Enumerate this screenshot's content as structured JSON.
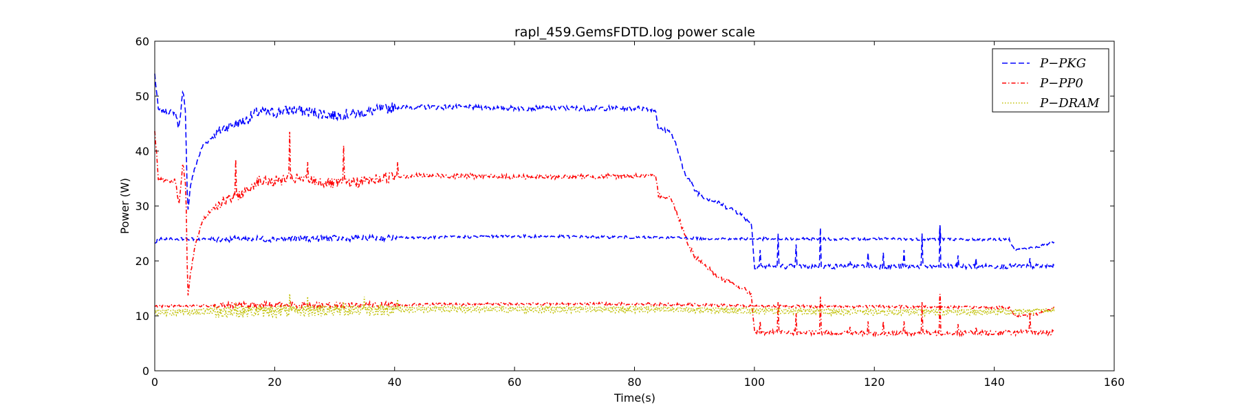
{
  "chart_data": {
    "type": "line",
    "title": "rapl_459.GemsFDTD.log power scale",
    "xlabel": "Time(s)",
    "ylabel": "Power (W)",
    "xlim": [
      0,
      160
    ],
    "ylim": [
      0,
      60
    ],
    "xticks": [
      "0",
      "20",
      "40",
      "60",
      "80",
      "100",
      "120",
      "140",
      "160"
    ],
    "yticks": [
      "0",
      "10",
      "20",
      "30",
      "40",
      "50",
      "60"
    ],
    "grid": false,
    "legend_position": "top-right",
    "series": [
      {
        "name": "P−PKG",
        "color": "#0000ff",
        "dash": "dashed",
        "profile": [
          [
            0,
            54
          ],
          [
            0.6,
            47.5
          ],
          [
            3.5,
            47
          ],
          [
            4,
            44
          ],
          [
            4.7,
            51
          ],
          [
            5.1,
            47
          ],
          [
            5.5,
            29
          ],
          [
            6,
            34
          ],
          [
            7,
            38
          ],
          [
            8,
            41
          ],
          [
            10,
            43
          ],
          [
            12,
            44.5
          ],
          [
            15,
            45.5
          ],
          [
            17,
            47
          ],
          [
            20,
            47
          ],
          [
            23,
            47.5
          ],
          [
            27,
            47
          ],
          [
            30,
            46.5
          ],
          [
            35,
            47
          ],
          [
            40,
            48
          ],
          [
            50,
            48
          ],
          [
            60,
            47.8
          ],
          [
            70,
            47.8
          ],
          [
            82,
            47.8
          ],
          [
            83.5,
            47.5
          ],
          [
            84,
            44
          ],
          [
            86,
            43.5
          ],
          [
            87,
            41
          ],
          [
            88,
            37
          ],
          [
            89,
            35
          ],
          [
            90,
            33
          ],
          [
            91,
            32
          ],
          [
            93,
            31
          ],
          [
            95,
            30
          ],
          [
            97,
            29
          ],
          [
            99.5,
            27
          ],
          [
            100,
            19
          ],
          [
            110,
            19
          ],
          [
            120,
            19
          ],
          [
            130,
            19
          ],
          [
            140,
            19
          ],
          [
            150,
            19
          ]
        ],
        "spikes": [
          [
            101,
            22
          ],
          [
            104,
            25
          ],
          [
            107,
            23
          ],
          [
            111,
            26
          ],
          [
            116,
            20
          ],
          [
            119,
            21.5
          ],
          [
            121.5,
            21.5
          ],
          [
            125,
            22
          ],
          [
            128,
            25
          ],
          [
            131,
            26.5
          ],
          [
            134,
            21
          ],
          [
            137,
            20.5
          ],
          [
            146,
            20.5
          ]
        ],
        "base": [
          [
            0,
            23
          ],
          [
            0.5,
            24
          ],
          [
            20,
            24
          ],
          [
            40,
            24.2
          ],
          [
            60,
            24.5
          ],
          [
            80,
            24.3
          ],
          [
            100,
            24
          ],
          [
            120,
            24
          ],
          [
            142.5,
            23.9
          ],
          [
            143.5,
            22
          ],
          [
            147,
            22.5
          ],
          [
            150,
            23.5
          ]
        ],
        "base_spikes": [
          [
            131,
            26.5
          ]
        ]
      },
      {
        "name": "P−PP0",
        "color": "#ff0000",
        "dash": "dashdot",
        "profile": [
          [
            0,
            44
          ],
          [
            0.6,
            35
          ],
          [
            3.5,
            34.5
          ],
          [
            4,
            30
          ],
          [
            4.7,
            38
          ],
          [
            5.2,
            33
          ],
          [
            5.5,
            13
          ],
          [
            6,
            18
          ],
          [
            7,
            24
          ],
          [
            8,
            27.5
          ],
          [
            10,
            30
          ],
          [
            12,
            31
          ],
          [
            15,
            32.5
          ],
          [
            17,
            34.5
          ],
          [
            20,
            34.5
          ],
          [
            23,
            35
          ],
          [
            27,
            34.5
          ],
          [
            30,
            34
          ],
          [
            35,
            34.5
          ],
          [
            40,
            35.5
          ],
          [
            50,
            35.5
          ],
          [
            60,
            35.3
          ],
          [
            70,
            35.3
          ],
          [
            82,
            35.5
          ],
          [
            83.5,
            35.3
          ],
          [
            84,
            32
          ],
          [
            86,
            31.5
          ],
          [
            87,
            29
          ],
          [
            88,
            26
          ],
          [
            89,
            23
          ],
          [
            90,
            21
          ],
          [
            92,
            19
          ],
          [
            94,
            17
          ],
          [
            96,
            16
          ],
          [
            98,
            15
          ],
          [
            99.5,
            14
          ],
          [
            100,
            7
          ],
          [
            120,
            6.8
          ],
          [
            150,
            7
          ]
        ],
        "spikes": [
          [
            13.5,
            38.5
          ],
          [
            22.5,
            43.5
          ],
          [
            25.5,
            38
          ],
          [
            31.5,
            41
          ],
          [
            40.5,
            38
          ],
          [
            101,
            9
          ],
          [
            104,
            12.5
          ],
          [
            107,
            10.5
          ],
          [
            111,
            13.5
          ],
          [
            116,
            8
          ],
          [
            119,
            9
          ],
          [
            121.5,
            9
          ],
          [
            125,
            9
          ],
          [
            128,
            12.5
          ],
          [
            131,
            14
          ],
          [
            134,
            8.5
          ],
          [
            137,
            8
          ],
          [
            146,
            10
          ]
        ],
        "base": [
          [
            0,
            11.5
          ],
          [
            0.5,
            11.8
          ],
          [
            20,
            12
          ],
          [
            40,
            12
          ],
          [
            60,
            12.2
          ],
          [
            80,
            12.2
          ],
          [
            100,
            11.8
          ],
          [
            120,
            11.7
          ],
          [
            142.5,
            11.5
          ],
          [
            143.5,
            10
          ],
          [
            147,
            10.3
          ],
          [
            150,
            11.5
          ]
        ],
        "base_spikes": [
          [
            131,
            14
          ]
        ]
      },
      {
        "name": "P−DRAM",
        "color": "#bfbf00",
        "dash": "dotted",
        "profile": [
          [
            0,
            10.5
          ],
          [
            20,
            10.7
          ],
          [
            40,
            11
          ],
          [
            60,
            11
          ],
          [
            80,
            11
          ],
          [
            100,
            10.8
          ],
          [
            120,
            10.5
          ],
          [
            140,
            10.5
          ],
          [
            150,
            11
          ]
        ],
        "spikes": [
          [
            13.5,
            12.5
          ],
          [
            22.5,
            14
          ],
          [
            25.5,
            13.5
          ],
          [
            31.5,
            12.5
          ],
          [
            35,
            13.5
          ],
          [
            40.5,
            13
          ]
        ],
        "base": [
          [
            0,
            11
          ],
          [
            20,
            11.3
          ],
          [
            40,
            11.5
          ],
          [
            60,
            11.5
          ],
          [
            80,
            11.5
          ],
          [
            100,
            11.2
          ],
          [
            120,
            11
          ],
          [
            150,
            11
          ]
        ],
        "base_spikes": []
      }
    ]
  }
}
